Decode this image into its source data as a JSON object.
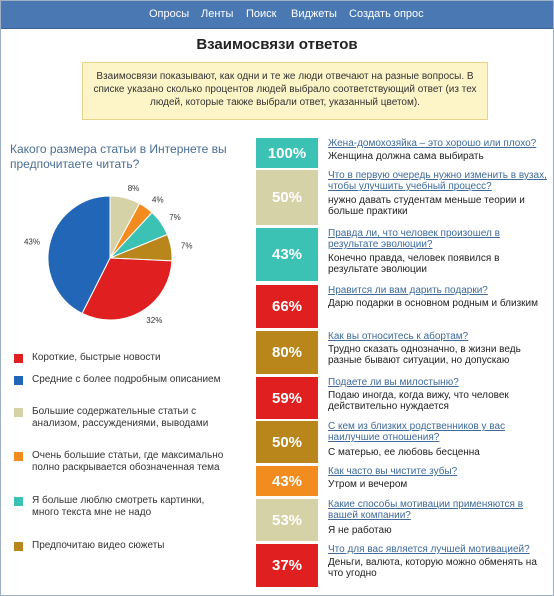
{
  "nav": {
    "items": [
      "Опросы",
      "Ленты",
      "Поиск",
      "Виджеты",
      "Создать опрос"
    ]
  },
  "title": "Взаимосвязи ответов",
  "info": "Взаимосвязи показывают, как одни и те же люди отвечают на разные вопросы. В списке указано сколько процентов людей выбрало соответствующий ответ (из тех людей, которые также выбрали ответ, указанный цветом).",
  "question": "Какого размера статьи в Интернете вы предпочитаете читать?",
  "chart_data": {
    "type": "pie",
    "slices": [
      {
        "label": "Короткие, быстрые новости",
        "value": 32,
        "display": "32%",
        "color": "#e02020"
      },
      {
        "label": "Средние с более подробным описанием",
        "value": 43,
        "display": "43%",
        "color": "#2266b8"
      },
      {
        "label": "Большие содержательные статьи с анализом, рассуждениями, выводами",
        "value": 8,
        "display": "8%",
        "color": "#d6d2a8"
      },
      {
        "label": "Очень большие статьи, где максимально полно раскрывается обозначенная тема",
        "value": 4,
        "display": "4%",
        "color": "#f28c1e"
      },
      {
        "label": "Я больше люблю смотреть картинки, много текста мне не надо",
        "value": 7,
        "display": "7%",
        "color": "#3cc2b4"
      },
      {
        "label": "Предпочитаю видео сюжеты",
        "value": 7,
        "display": "7%",
        "color": "#b8861a"
      }
    ]
  },
  "results": [
    {
      "percent": "100%",
      "color": "#3cc2b4",
      "question": "Жена-домохозяйка – это хорошо или плохо?",
      "answer": "Женщина должна сама выбирать"
    },
    {
      "percent": "50%",
      "color": "#d6d2a8",
      "question": "Что в первую очередь нужно изменить в вузах, чтобы улучшить учебный процесс?",
      "answer": "нужно давать студентам меньше теории и больше практики"
    },
    {
      "percent": "43%",
      "color": "#3cc2b4",
      "question": "Правда ли, что человек произошел в результате эволюции?",
      "answer": "Конечно правда, человек появился в результате эволюции"
    },
    {
      "percent": "66%",
      "color": "#e02020",
      "question": "Нравится ли вам дарить подарки?",
      "answer": "Дарю подарки в основном родным и близким"
    },
    {
      "percent": "80%",
      "color": "#b8861a",
      "question": "Как вы относитесь к абортам?",
      "answer": "Трудно сказать однозначно, в жизни ведь разные бывают ситуации, но допускаю"
    },
    {
      "percent": "59%",
      "color": "#e02020",
      "question": "Подаете ли вы милостыню?",
      "answer": "Подаю иногда, когда вижу, что человек действительно нуждается"
    },
    {
      "percent": "50%",
      "color": "#b8861a",
      "question": "С кем из близких родственников у вас наилучшие отношения?",
      "answer": "С матерью, ее любовь бесценна"
    },
    {
      "percent": "43%",
      "color": "#f28c1e",
      "question": "Как часто вы чистите зубы?",
      "answer": "Утром и вечером"
    },
    {
      "percent": "53%",
      "color": "#d6d2a8",
      "question": "Какие способы мотивации применяются в вашей компании?",
      "answer": "Я не работаю"
    },
    {
      "percent": "37%",
      "color": "#e02020",
      "question": "Что для вас является лучшей мотивацией?",
      "answer": "Деньги, валюта, которую можно обменять на что угодно"
    }
  ]
}
